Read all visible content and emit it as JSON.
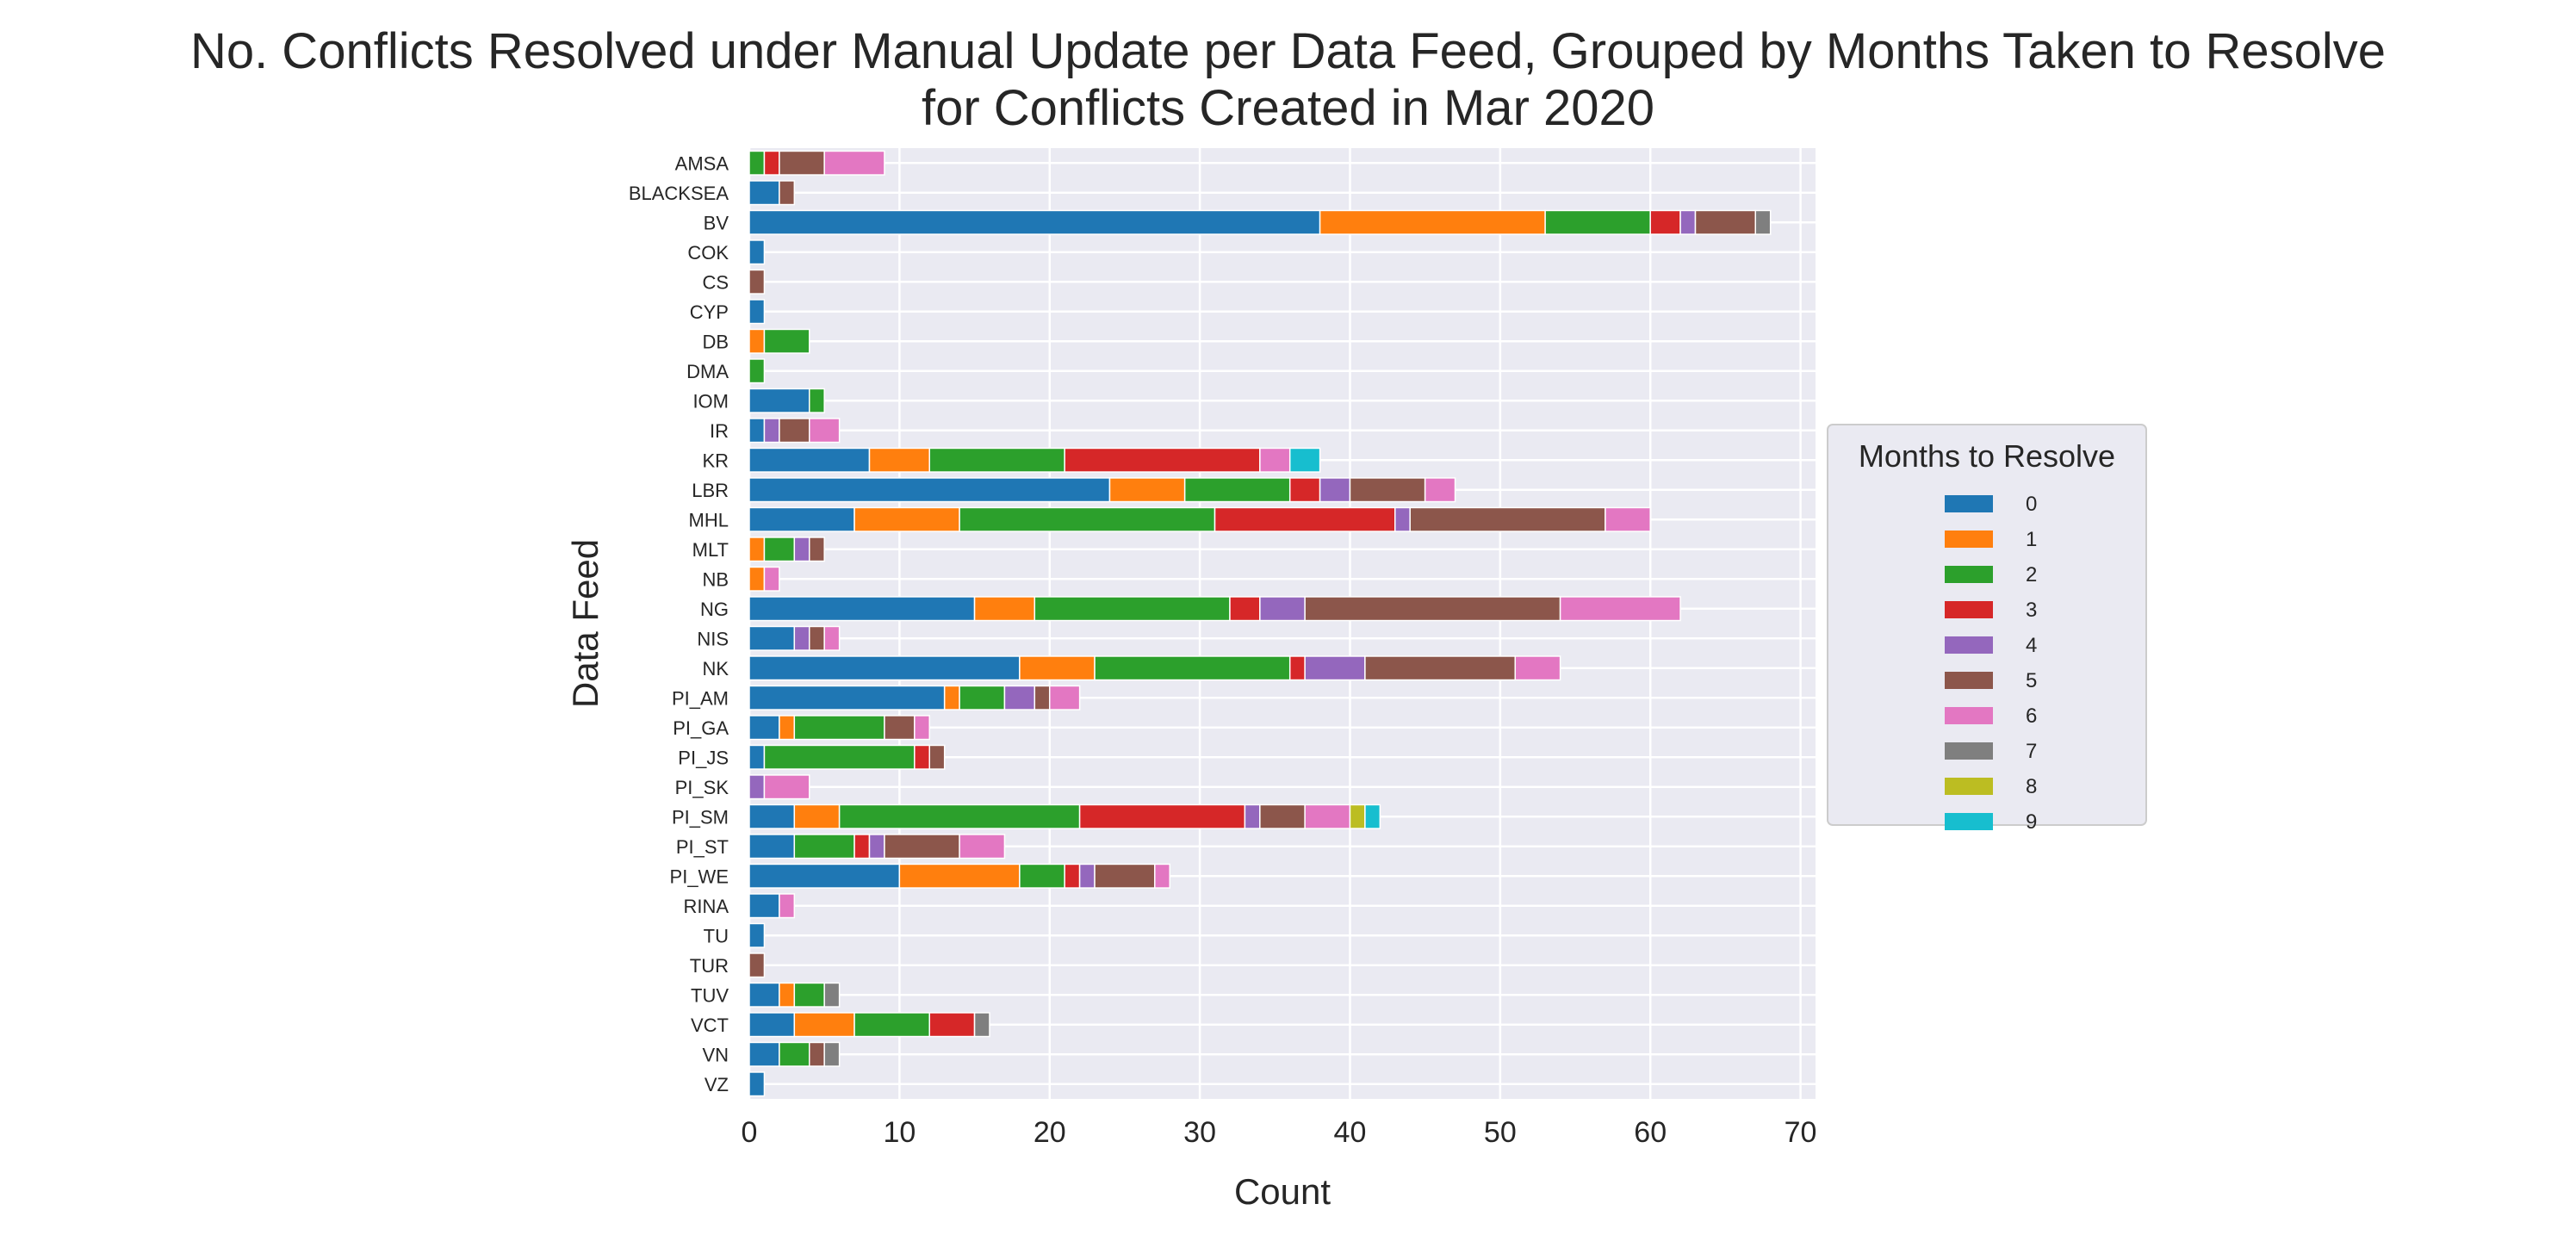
{
  "chart_data": {
    "type": "bar",
    "orientation": "horizontal",
    "stacked": true,
    "title_lines": [
      "No. Conflicts Resolved under Manual Update per Data Feed, Grouped by Months Taken to Resolve",
      "for Conflicts Created in Mar 2020"
    ],
    "xlabel": "Count",
    "ylabel": "Data Feed",
    "xlim": [
      0,
      71
    ],
    "xticks": [
      0,
      10,
      20,
      30,
      40,
      50,
      60,
      70
    ],
    "grid": true,
    "legend": {
      "title": "Months to Resolve",
      "placement": "right"
    },
    "categories": [
      "AMSA",
      "BLACKSEA",
      "BV",
      "COK",
      "CS",
      "CYP",
      "DB",
      "DMA",
      "IOM",
      "IR",
      "KR",
      "LBR",
      "MHL",
      "MLT",
      "NB",
      "NG",
      "NIS",
      "NK",
      "PI_AM",
      "PI_GA",
      "PI_JS",
      "PI_SK",
      "PI_SM",
      "PI_ST",
      "PI_WE",
      "RINA",
      "TU",
      "TUR",
      "TUV",
      "VCT",
      "VN",
      "VZ"
    ],
    "series": [
      {
        "name": "0",
        "color": "#1f77b4",
        "values": [
          0,
          2,
          38,
          1,
          0,
          1,
          0,
          0,
          4,
          1,
          8,
          24,
          7,
          0,
          0,
          15,
          3,
          18,
          13,
          2,
          1,
          0,
          3,
          3,
          10,
          2,
          1,
          0,
          2,
          3,
          2,
          1
        ]
      },
      {
        "name": "1",
        "color": "#ff7f0e",
        "values": [
          0,
          0,
          15,
          0,
          0,
          0,
          1,
          0,
          0,
          0,
          4,
          5,
          7,
          1,
          1,
          4,
          0,
          5,
          1,
          1,
          0,
          0,
          3,
          0,
          8,
          0,
          0,
          0,
          1,
          4,
          0,
          0
        ]
      },
      {
        "name": "2",
        "color": "#2ca02c",
        "values": [
          1,
          0,
          7,
          0,
          0,
          0,
          3,
          1,
          1,
          0,
          9,
          7,
          17,
          2,
          0,
          13,
          0,
          13,
          3,
          6,
          10,
          0,
          16,
          4,
          3,
          0,
          0,
          0,
          2,
          5,
          2,
          0
        ]
      },
      {
        "name": "3",
        "color": "#d62728",
        "values": [
          1,
          0,
          2,
          0,
          0,
          0,
          0,
          0,
          0,
          0,
          13,
          2,
          12,
          0,
          0,
          2,
          0,
          1,
          0,
          0,
          1,
          0,
          11,
          1,
          1,
          0,
          0,
          0,
          0,
          3,
          0,
          0
        ]
      },
      {
        "name": "4",
        "color": "#9467bd",
        "values": [
          0,
          0,
          1,
          0,
          0,
          0,
          0,
          0,
          0,
          1,
          0,
          2,
          1,
          1,
          0,
          3,
          1,
          4,
          2,
          0,
          0,
          1,
          1,
          1,
          1,
          0,
          0,
          0,
          0,
          0,
          0,
          0
        ]
      },
      {
        "name": "5",
        "color": "#8c564b",
        "values": [
          3,
          1,
          4,
          0,
          1,
          0,
          0,
          0,
          0,
          2,
          0,
          5,
          13,
          1,
          0,
          17,
          1,
          10,
          1,
          2,
          1,
          0,
          3,
          5,
          4,
          0,
          0,
          1,
          0,
          0,
          1,
          0
        ]
      },
      {
        "name": "6",
        "color": "#e377c2",
        "values": [
          4,
          0,
          0,
          0,
          0,
          0,
          0,
          0,
          0,
          2,
          2,
          2,
          3,
          0,
          1,
          8,
          1,
          3,
          2,
          1,
          0,
          3,
          3,
          3,
          1,
          1,
          0,
          0,
          0,
          0,
          0,
          0
        ]
      },
      {
        "name": "7",
        "color": "#7f7f7f",
        "values": [
          0,
          0,
          1,
          0,
          0,
          0,
          0,
          0,
          0,
          0,
          0,
          0,
          0,
          0,
          0,
          0,
          0,
          0,
          0,
          0,
          0,
          0,
          0,
          0,
          0,
          0,
          0,
          0,
          1,
          1,
          1,
          0
        ]
      },
      {
        "name": "8",
        "color": "#bcbd22",
        "values": [
          0,
          0,
          0,
          0,
          0,
          0,
          0,
          0,
          0,
          0,
          0,
          0,
          0,
          0,
          0,
          0,
          0,
          0,
          0,
          0,
          0,
          0,
          1,
          0,
          0,
          0,
          0,
          0,
          0,
          0,
          0,
          0
        ]
      },
      {
        "name": "9",
        "color": "#17becf",
        "values": [
          0,
          0,
          0,
          0,
          0,
          0,
          0,
          0,
          0,
          0,
          2,
          0,
          0,
          0,
          0,
          0,
          0,
          0,
          0,
          0,
          0,
          0,
          1,
          0,
          0,
          0,
          0,
          0,
          0,
          0,
          0,
          0
        ]
      }
    ]
  },
  "style": {
    "plot_background": "#eaeaf2",
    "grid_color": "#ffffff",
    "text_color": "#262626"
  }
}
